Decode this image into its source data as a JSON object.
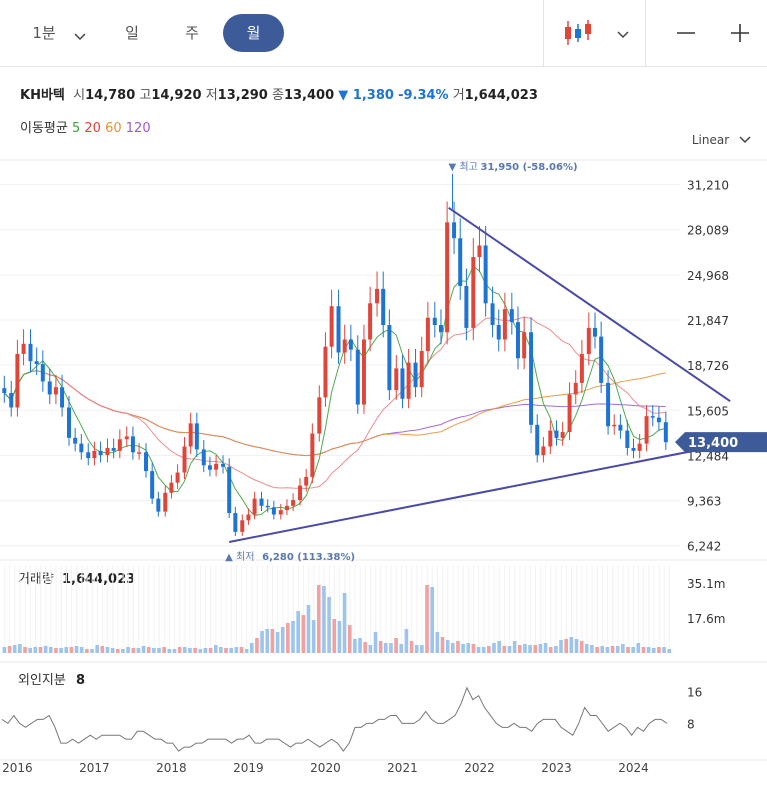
{
  "toolbar": {
    "timeframes": [
      {
        "label": "1분",
        "selected": false
      },
      {
        "label": "일",
        "selected": false
      },
      {
        "label": "주",
        "selected": false
      },
      {
        "label": "월",
        "selected": true
      }
    ],
    "icons": [
      "chevron-down-icon",
      "candlestick-icon",
      "chevron-down-icon",
      "minus-icon",
      "plus-icon"
    ],
    "accent_color": "#3d5a99"
  },
  "stock": {
    "name": "KH바텍",
    "open_label": "시",
    "open": "14,780",
    "high_label": "고",
    "high": "14,920",
    "low_label": "저",
    "low": "13,290",
    "close_label": "종",
    "close": "13,400",
    "change": "▼ 1,380",
    "change_pct": "-9.34%",
    "volume_label": "거",
    "volume": "1,644,023",
    "down_color": "#1e74d4",
    "up_color": "#e0453a"
  },
  "ma_legend": {
    "label": "이동평균",
    "periods": [
      {
        "period": "5",
        "color": "#3aa33a"
      },
      {
        "period": "20",
        "color": "#e0453a"
      },
      {
        "period": "60",
        "color": "#e8913c"
      },
      {
        "period": "120",
        "color": "#9a5cd0"
      }
    ]
  },
  "scale_mode": "Linear",
  "chart_data": [
    {
      "type": "candlestick",
      "title": "",
      "x_ticks": [
        "2016",
        "2017",
        "2018",
        "2019",
        "2020",
        "2021",
        "2022",
        "2023",
        "2024"
      ],
      "y_ticks": [
        "31,210",
        "28,089",
        "24,968",
        "21,847",
        "18,726",
        "15,605",
        "12,484",
        "9,363",
        "6,242"
      ],
      "y_tick_values": [
        31210,
        28089,
        24968,
        21847,
        18726,
        15605,
        12484,
        9363,
        6242
      ],
      "ylim": [
        5600,
        33600
      ],
      "x_range": [
        2015.8,
        2024.5
      ],
      "high_marker": {
        "label": "최고",
        "value": "31,950",
        "pct": "(-58.06%)",
        "x": 2021.65,
        "y": 31950
      },
      "low_marker": {
        "label": "최저",
        "value": "6,280",
        "pct": "(113.38%)",
        "x": 2018.75,
        "y": 6280
      },
      "current_price": {
        "value": "13,400",
        "y": 13400
      },
      "trendlines": [
        {
          "from": [
            2021.6,
            29600
          ],
          "to": [
            2024.45,
            15200
          ]
        },
        {
          "from": [
            2018.75,
            6500
          ],
          "to": [
            2024.45,
            13300
          ]
        }
      ],
      "series": [
        {
          "key": "close",
          "points": [
            [
              2015.83,
              16800
            ],
            [
              2015.92,
              15800
            ],
            [
              2016.0,
              19500
            ],
            [
              2016.08,
              20200
            ],
            [
              2016.17,
              19000
            ],
            [
              2016.25,
              18800
            ],
            [
              2016.33,
              17600
            ],
            [
              2016.42,
              16700
            ],
            [
              2016.5,
              17200
            ],
            [
              2016.58,
              15800
            ],
            [
              2016.67,
              13700
            ],
            [
              2016.75,
              13300
            ],
            [
              2016.83,
              12700
            ],
            [
              2016.92,
              12300
            ],
            [
              2017.0,
              12800
            ],
            [
              2017.08,
              12500
            ],
            [
              2017.17,
              13000
            ],
            [
              2017.25,
              12800
            ],
            [
              2017.33,
              13600
            ],
            [
              2017.42,
              13800
            ],
            [
              2017.5,
              12700
            ],
            [
              2017.58,
              12700
            ],
            [
              2017.67,
              11400
            ],
            [
              2017.75,
              9500
            ],
            [
              2017.83,
              8600
            ],
            [
              2017.92,
              9900
            ],
            [
              2018.0,
              10600
            ],
            [
              2018.08,
              11300
            ],
            [
              2018.17,
              13100
            ],
            [
              2018.25,
              14700
            ],
            [
              2018.33,
              12900
            ],
            [
              2018.42,
              11800
            ],
            [
              2018.5,
              11500
            ],
            [
              2018.58,
              11900
            ],
            [
              2018.67,
              11700
            ],
            [
              2018.75,
              8500
            ],
            [
              2018.83,
              7200
            ],
            [
              2018.92,
              8000
            ],
            [
              2019.0,
              8400
            ],
            [
              2019.08,
              9500
            ],
            [
              2019.17,
              9000
            ],
            [
              2019.25,
              8900
            ],
            [
              2019.33,
              8400
            ],
            [
              2019.42,
              8700
            ],
            [
              2019.5,
              9000
            ],
            [
              2019.58,
              9400
            ],
            [
              2019.67,
              10400
            ],
            [
              2019.75,
              11000
            ],
            [
              2019.83,
              14000
            ],
            [
              2019.92,
              16500
            ],
            [
              2020.0,
              20000
            ],
            [
              2020.08,
              22800
            ],
            [
              2020.17,
              19600
            ],
            [
              2020.25,
              20500
            ],
            [
              2020.33,
              19800
            ],
            [
              2020.42,
              16000
            ],
            [
              2020.5,
              20500
            ],
            [
              2020.58,
              23000
            ],
            [
              2020.67,
              24000
            ],
            [
              2020.75,
              21500
            ],
            [
              2020.83,
              17000
            ],
            [
              2020.92,
              18500
            ],
            [
              2021.0,
              16400
            ],
            [
              2021.08,
              18900
            ],
            [
              2021.17,
              17200
            ],
            [
              2021.25,
              19700
            ],
            [
              2021.33,
              22000
            ],
            [
              2021.42,
              21500
            ],
            [
              2021.5,
              21000
            ],
            [
              2021.58,
              28600
            ],
            [
              2021.67,
              27500
            ],
            [
              2021.75,
              24200
            ],
            [
              2021.83,
              21300
            ],
            [
              2021.92,
              26200
            ],
            [
              2022.0,
              27000
            ],
            [
              2022.08,
              23000
            ],
            [
              2022.17,
              21500
            ],
            [
              2022.25,
              20500
            ],
            [
              2022.33,
              22600
            ],
            [
              2022.42,
              21700
            ],
            [
              2022.5,
              19200
            ],
            [
              2022.58,
              21000
            ],
            [
              2022.67,
              14600
            ],
            [
              2022.75,
              12500
            ],
            [
              2022.83,
              13100
            ],
            [
              2022.92,
              14200
            ],
            [
              2023.0,
              13700
            ],
            [
              2023.08,
              14100
            ],
            [
              2023.17,
              16700
            ],
            [
              2023.25,
              17500
            ],
            [
              2023.33,
              19500
            ],
            [
              2023.42,
              21300
            ],
            [
              2023.5,
              20700
            ],
            [
              2023.58,
              17500
            ],
            [
              2023.67,
              14500
            ],
            [
              2023.75,
              14600
            ],
            [
              2023.83,
              14200
            ],
            [
              2023.92,
              13000
            ],
            [
              2024.0,
              12800
            ],
            [
              2024.08,
              13300
            ],
            [
              2024.17,
              15200
            ],
            [
              2024.25,
              15100
            ],
            [
              2024.33,
              14780
            ],
            [
              2024.42,
              13400
            ]
          ]
        }
      ]
    },
    {
      "type": "bar",
      "title": "",
      "label": "거래량",
      "value_label": "1,644,023",
      "y_ticks": [
        "35.1m",
        "17.6m"
      ],
      "y_tick_values": [
        35100000,
        17600000
      ],
      "ylim": [
        0,
        44000000
      ],
      "values_m": [
        3,
        3.5,
        4,
        4.5,
        3,
        2.5,
        3,
        3,
        3.5,
        3,
        2.5,
        2.5,
        3,
        3,
        3.5,
        3,
        2,
        2,
        4,
        3.5,
        3,
        2.5,
        2,
        2,
        3,
        2.5,
        2.5,
        3.5,
        3,
        2.5,
        2.5,
        3,
        2,
        2,
        3,
        3,
        2.5,
        2.5,
        2,
        2.5,
        2.5,
        4,
        3,
        2.5,
        2.5,
        3,
        3,
        2,
        5,
        7.5,
        11,
        12,
        12,
        10.5,
        13,
        15,
        16,
        21,
        19,
        24,
        16.5,
        34,
        33.5,
        28,
        17,
        16,
        30,
        14,
        7,
        7.5,
        5.5,
        4,
        10.5,
        6,
        5,
        5,
        7.5,
        4.5,
        12,
        6,
        4,
        4,
        34,
        33,
        10.5,
        8,
        6.5,
        5,
        6,
        4.5,
        5,
        4.5,
        3,
        3,
        3.5,
        5,
        6,
        3.5,
        3.5,
        6,
        4,
        4.5,
        4,
        4,
        4.5,
        5,
        3,
        3.5,
        6.5,
        7,
        8,
        7,
        6,
        4.5,
        4,
        3,
        3.5,
        3,
        3.5,
        3.5,
        4.5,
        3,
        3,
        5,
        3,
        3,
        2.5,
        3,
        3,
        2
      ]
    },
    {
      "type": "line",
      "title": "",
      "label": "외인지분",
      "value_label": "8",
      "y_ticks": [
        "16",
        "8"
      ],
      "y_tick_values": [
        16,
        8
      ],
      "ylim": [
        0,
        22
      ],
      "x_ticks": [
        "2016",
        "2017",
        "2018",
        "2019",
        "2020",
        "2021",
        "2022",
        "2023",
        "2024"
      ],
      "values": [
        9,
        8,
        10,
        8,
        7,
        8,
        9,
        9,
        10,
        7,
        3,
        3,
        4,
        3,
        4,
        5,
        4,
        5,
        5,
        5,
        5,
        4,
        4,
        6,
        6,
        5,
        4,
        4,
        3,
        3,
        1,
        2,
        2,
        3,
        3,
        4,
        4,
        4,
        4,
        3,
        4,
        4,
        5,
        3,
        3,
        4,
        4,
        4,
        3,
        2,
        3,
        3,
        4,
        3,
        2,
        3,
        4,
        3,
        1,
        3,
        7,
        7,
        8,
        8,
        9,
        9,
        10,
        10,
        8,
        8,
        8,
        9,
        11,
        9,
        8,
        8,
        9,
        10,
        13,
        17,
        14,
        15,
        12,
        10,
        8,
        7,
        7,
        8,
        7,
        7,
        6,
        8,
        9,
        9,
        9,
        7,
        6,
        5,
        8,
        12,
        10,
        10,
        8,
        6,
        7,
        8,
        7,
        5,
        7,
        6,
        8,
        9,
        9,
        8
      ]
    }
  ]
}
